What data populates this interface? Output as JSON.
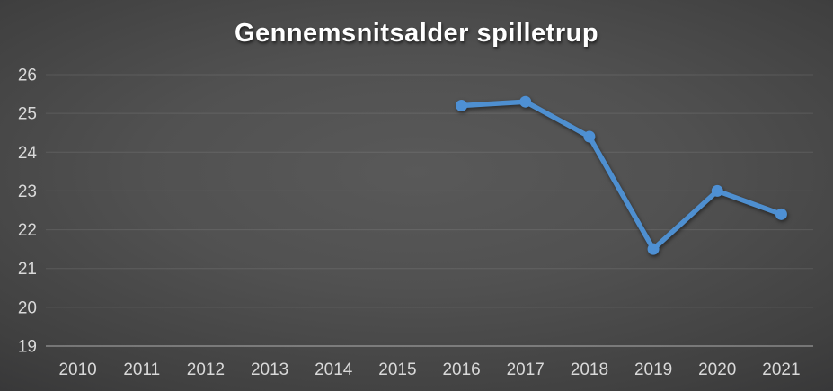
{
  "chart_data": {
    "type": "line",
    "title": "Gennemsnitsalder spilletrup",
    "categories": [
      "2010",
      "2011",
      "2012",
      "2013",
      "2014",
      "2015",
      "2016",
      "2017",
      "2018",
      "2019",
      "2020",
      "2021"
    ],
    "series": [
      {
        "values": [
          null,
          null,
          null,
          null,
          null,
          null,
          25.2,
          25.3,
          24.4,
          21.5,
          23.0,
          22.4
        ]
      }
    ],
    "xlabel": "",
    "ylabel": "",
    "ylim": [
      19,
      26
    ],
    "yticks": [
      19,
      20,
      21,
      22,
      23,
      24,
      25,
      26
    ],
    "grid": "horizontal",
    "legend": "none",
    "line_color": "#4E8FD0",
    "marker_color": "#4E90D4",
    "axis_label_color": "#D9D9D9",
    "title_color": "#FFFFFF",
    "gridline_color": "rgba(255,255,255,0.10)",
    "axis_line_color": "rgba(255,255,255,0.38)"
  }
}
